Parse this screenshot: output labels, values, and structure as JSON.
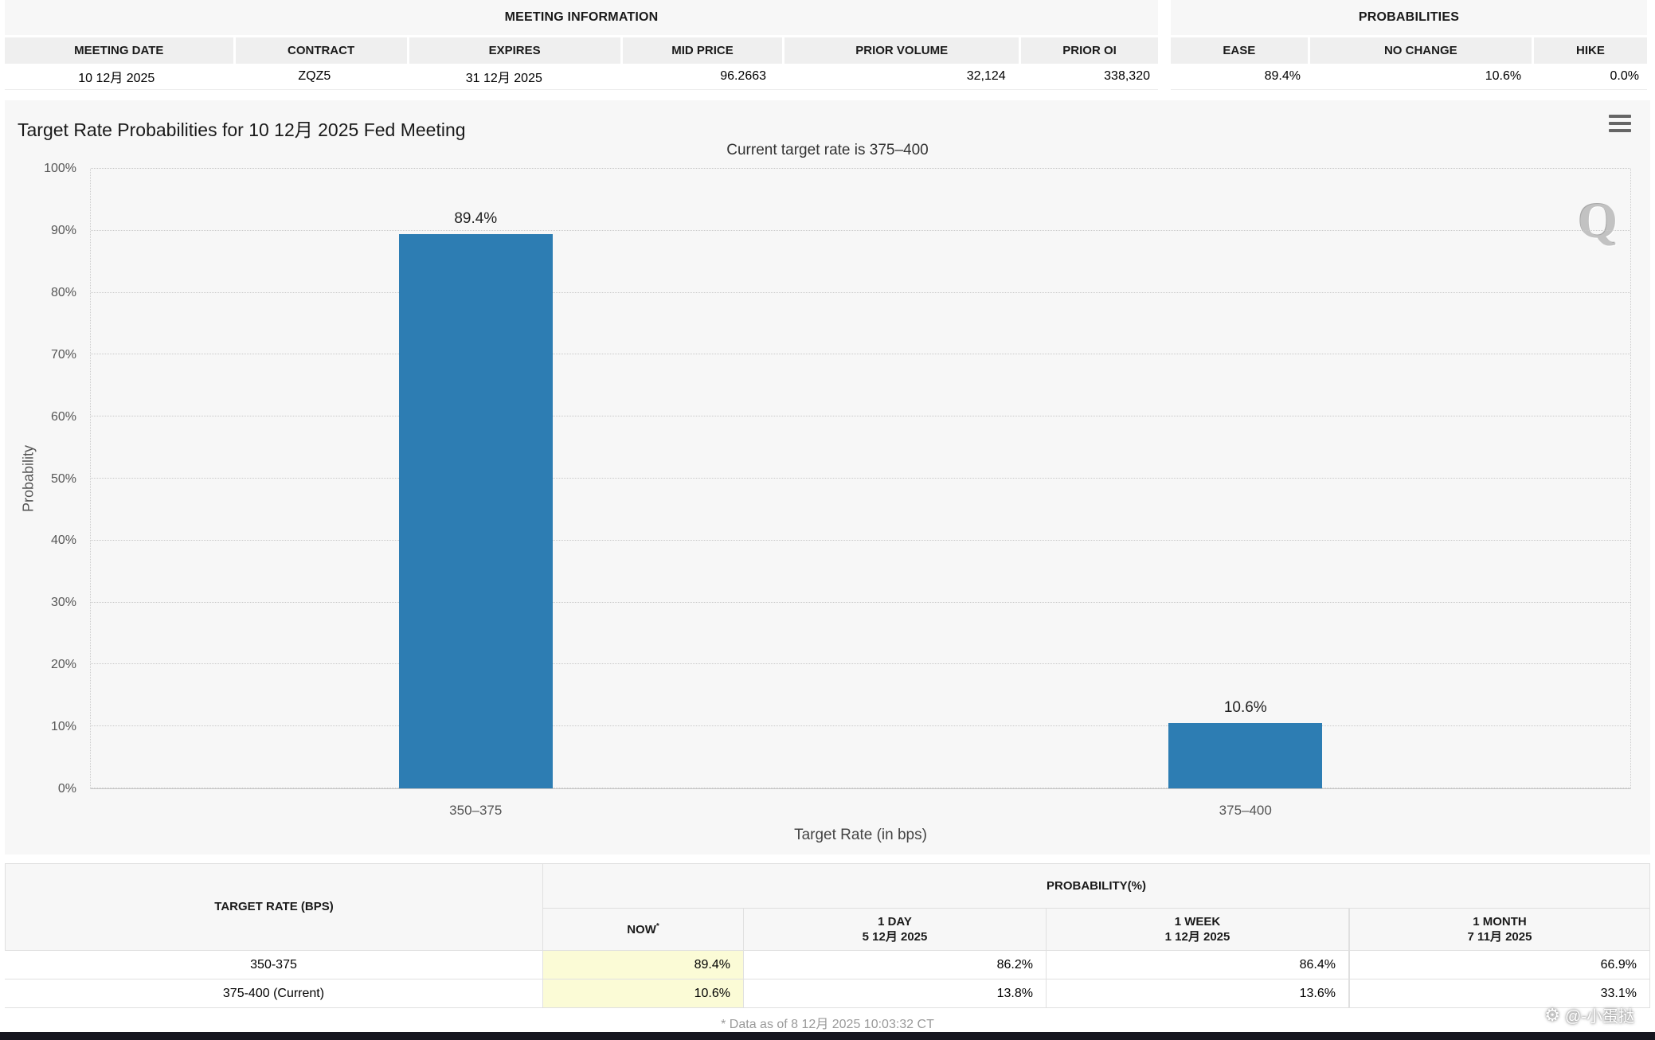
{
  "meeting_information": {
    "title": "MEETING INFORMATION",
    "columns": [
      "MEETING DATE",
      "CONTRACT",
      "EXPIRES",
      "MID PRICE",
      "PRIOR VOLUME",
      "PRIOR OI"
    ],
    "values": [
      "10 12月 2025",
      "ZQZ5",
      "31 12月 2025",
      "96.2663",
      "32,124",
      "338,320"
    ]
  },
  "probabilities_panel": {
    "title": "PROBABILITIES",
    "columns": [
      "EASE",
      "NO CHANGE",
      "HIKE"
    ],
    "values": [
      "89.4%",
      "10.6%",
      "0.0%"
    ]
  },
  "chart_data": {
    "type": "bar",
    "title": "Target Rate Probabilities for 10 12月 2025 Fed Meeting",
    "subtitle": "Current target rate is 375–400",
    "categories": [
      "350–375",
      "375–400"
    ],
    "values": [
      89.4,
      10.6
    ],
    "bar_labels": [
      "89.4%",
      "10.6%"
    ],
    "xlabel": "Target Rate (in bps)",
    "ylabel": "Probability",
    "ylim": [
      0,
      100
    ],
    "ytick_step": 10,
    "ytick_suffix": "%",
    "grid": true,
    "legend": "none",
    "bar_color": "#2d7db3",
    "watermark": "Q"
  },
  "probability_table": {
    "col1_header": "TARGET RATE (BPS)",
    "group_header": "PROBABILITY(%)",
    "sub_headers": [
      {
        "line1": "NOW",
        "sup": "*",
        "line2": ""
      },
      {
        "line1": "1 DAY",
        "line2": "5 12月 2025"
      },
      {
        "line1": "1 WEEK",
        "line2": "1 12月 2025"
      },
      {
        "line1": "1 MONTH",
        "line2": "7 11月 2025"
      }
    ],
    "rows": [
      {
        "rate": "350-375",
        "now": "89.4%",
        "day": "86.2%",
        "week": "86.4%",
        "month": "66.9%"
      },
      {
        "rate": "375-400 (Current)",
        "now": "10.6%",
        "day": "13.8%",
        "week": "13.6%",
        "month": "33.1%"
      }
    ],
    "footnote": "* Data as of 8 12月 2025 10:03:32 CT"
  },
  "credit": {
    "text": "@-小蛋挞"
  }
}
